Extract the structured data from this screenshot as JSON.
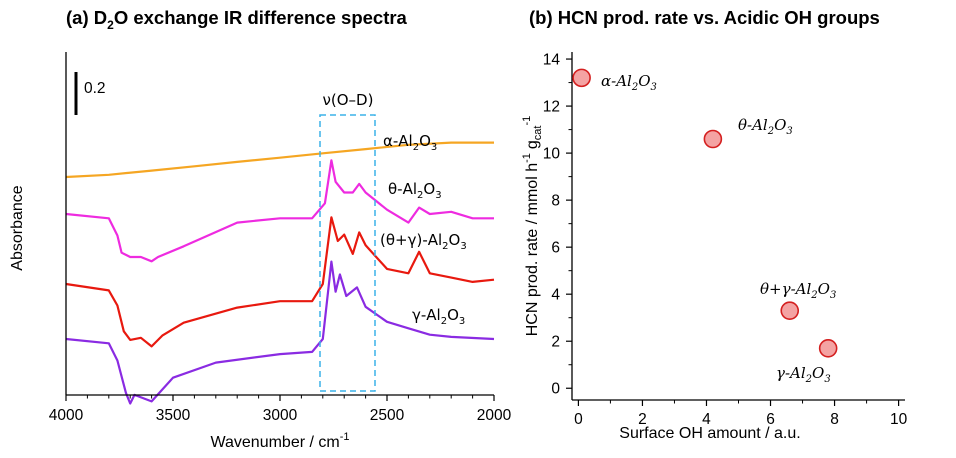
{
  "panel_a": {
    "title_pre": "(a) D",
    "title_sub": "2",
    "title_post": "O exchange IR difference spectra",
    "ylabel": "Absorbance",
    "xlabel": "Wavenumber / cm",
    "xlabel_sup": "-1",
    "scalebar_label": "0.2",
    "box_label": "ν(O–D)",
    "xticks": [
      "4000",
      "3500",
      "3000",
      "2500",
      "2000"
    ],
    "curve_labels": [
      {
        "pre": "α-Al",
        "s1": "2",
        "mid": "O",
        "s2": "3"
      },
      {
        "pre": "θ-Al",
        "s1": "2",
        "mid": "O",
        "s2": "3"
      },
      {
        "pre": "(θ+γ)-Al",
        "s1": "2",
        "mid": "O",
        "s2": "3"
      },
      {
        "pre": "γ-Al",
        "s1": "2",
        "mid": "O",
        "s2": "3"
      }
    ]
  },
  "panel_b": {
    "title": "(b) HCN prod. rate vs. Acidic OH groups",
    "ylabel_main": "HCN prod. rate / mmol h",
    "ylabel_sup1": "-1",
    "ylabel_g": "g",
    "ylabel_gsub": "cat",
    "ylabel_sup2": "-1",
    "xlabel": "Surface OH amount / a.u.",
    "xticks": [
      "0",
      "2",
      "4",
      "6",
      "8",
      "10"
    ],
    "yticks": [
      "0",
      "2",
      "4",
      "6",
      "8",
      "10",
      "12",
      "14"
    ],
    "point_labels": [
      {
        "pre": "α-Al",
        "s1": "2",
        "mid": "O",
        "s2": "3"
      },
      {
        "pre": "θ-Al",
        "s1": "2",
        "mid": "O",
        "s2": "3"
      },
      {
        "pre": "θ+γ-Al",
        "s1": "2",
        "mid": "O",
        "s2": "3"
      },
      {
        "pre": "γ-Al",
        "s1": "2",
        "mid": "O",
        "s2": "3"
      }
    ]
  },
  "chart_data": [
    {
      "type": "line",
      "title": "(a) D2O exchange IR difference spectra",
      "xlabel": "Wavenumber / cm-1",
      "ylabel": "Absorbance",
      "xlim": [
        4000,
        2000
      ],
      "x_reversed": true,
      "scalebar": 0.2,
      "series": [
        {
          "name": "α-Al2O3",
          "color": "#f5a623",
          "points": [
            [
              4000,
              0
            ],
            [
              3800,
              0.01
            ],
            [
              3600,
              0.03
            ],
            [
              3400,
              0.05
            ],
            [
              3200,
              0.07
            ],
            [
              3000,
              0.09
            ],
            [
              2800,
              0.11
            ],
            [
              2600,
              0.13
            ],
            [
              2400,
              0.15
            ],
            [
              2200,
              0.16
            ],
            [
              2000,
              0.16
            ]
          ]
        },
        {
          "name": "θ-Al2O3",
          "color": "#ee2be0",
          "points": [
            [
              4000,
              0
            ],
            [
              3800,
              -0.02
            ],
            [
              3760,
              -0.1
            ],
            [
              3740,
              -0.18
            ],
            [
              3700,
              -0.2
            ],
            [
              3650,
              -0.2
            ],
            [
              3600,
              -0.22
            ],
            [
              3570,
              -0.2
            ],
            [
              3450,
              -0.15
            ],
            [
              3200,
              -0.04
            ],
            [
              3000,
              -0.02
            ],
            [
              2850,
              -0.02
            ],
            [
              2790,
              0.05
            ],
            [
              2760,
              0.25
            ],
            [
              2740,
              0.15
            ],
            [
              2700,
              0.1
            ],
            [
              2660,
              0.1
            ],
            [
              2630,
              0.14
            ],
            [
              2600,
              0.1
            ],
            [
              2500,
              0.02
            ],
            [
              2400,
              -0.04
            ],
            [
              2350,
              0.03
            ],
            [
              2300,
              0
            ],
            [
              2200,
              0.01
            ],
            [
              2100,
              -0.02
            ],
            [
              2000,
              -0.02
            ]
          ]
        },
        {
          "name": "(θ+γ)-Al2O3",
          "color": "#e8190f",
          "points": [
            [
              4000,
              0
            ],
            [
              3800,
              -0.03
            ],
            [
              3760,
              -0.1
            ],
            [
              3730,
              -0.22
            ],
            [
              3700,
              -0.26
            ],
            [
              3650,
              -0.25
            ],
            [
              3600,
              -0.29
            ],
            [
              3550,
              -0.24
            ],
            [
              3450,
              -0.18
            ],
            [
              3200,
              -0.11
            ],
            [
              3000,
              -0.08
            ],
            [
              2850,
              -0.08
            ],
            [
              2800,
              0
            ],
            [
              2760,
              0.31
            ],
            [
              2730,
              0.2
            ],
            [
              2700,
              0.23
            ],
            [
              2660,
              0.14
            ],
            [
              2630,
              0.24
            ],
            [
              2600,
              0.18
            ],
            [
              2500,
              0.07
            ],
            [
              2400,
              0.05
            ],
            [
              2350,
              0.15
            ],
            [
              2300,
              0.05
            ],
            [
              2200,
              0.03
            ],
            [
              2100,
              0.01
            ],
            [
              2000,
              0.02
            ]
          ]
        },
        {
          "name": "γ-Al2O3",
          "color": "#8a2be2",
          "points": [
            [
              4000,
              0
            ],
            [
              3800,
              -0.02
            ],
            [
              3760,
              -0.1
            ],
            [
              3720,
              -0.25
            ],
            [
              3700,
              -0.3
            ],
            [
              3680,
              -0.26
            ],
            [
              3600,
              -0.29
            ],
            [
              3500,
              -0.18
            ],
            [
              3300,
              -0.11
            ],
            [
              3000,
              -0.07
            ],
            [
              2850,
              -0.06
            ],
            [
              2800,
              0
            ],
            [
              2760,
              0.36
            ],
            [
              2740,
              0.22
            ],
            [
              2720,
              0.3
            ],
            [
              2690,
              0.2
            ],
            [
              2640,
              0.24
            ],
            [
              2600,
              0.15
            ],
            [
              2500,
              0.08
            ],
            [
              2400,
              0.05
            ],
            [
              2300,
              0.02
            ],
            [
              2200,
              0.01
            ],
            [
              2000,
              0
            ]
          ]
        }
      ]
    },
    {
      "type": "scatter",
      "title": "(b) HCN prod. rate vs. Acidic OH groups",
      "xlabel": "Surface OH amount / a.u.",
      "ylabel": "HCN prod. rate / mmol h-1 gcat-1",
      "xlim": [
        -0.2,
        10.2
      ],
      "ylim": [
        -0.5,
        14.3
      ],
      "marker_color": "#f4a3a3",
      "marker_edge": "#d42020",
      "points": [
        {
          "label": "α-Al2O3",
          "x": 0.1,
          "y": 13.2
        },
        {
          "label": "θ-Al2O3",
          "x": 4.2,
          "y": 10.6
        },
        {
          "label": "θ+γ-Al2O3",
          "x": 6.6,
          "y": 3.3
        },
        {
          "label": "γ-Al2O3",
          "x": 7.8,
          "y": 1.7
        }
      ]
    }
  ]
}
